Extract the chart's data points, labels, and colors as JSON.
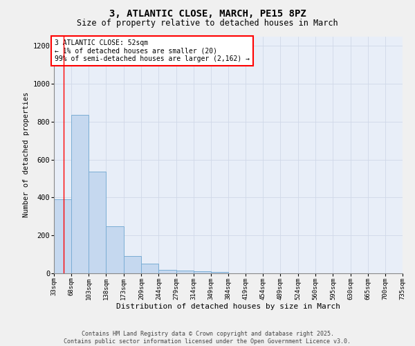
{
  "title": "3, ATLANTIC CLOSE, MARCH, PE15 8PZ",
  "subtitle": "Size of property relative to detached houses in March",
  "xlabel": "Distribution of detached houses by size in March",
  "ylabel": "Number of detached properties",
  "bar_values": [
    390,
    835,
    535,
    248,
    90,
    52,
    18,
    15,
    12,
    8,
    0,
    0,
    0,
    0,
    0,
    0,
    0,
    0,
    0,
    0
  ],
  "bin_edges": [
    33,
    68,
    103,
    138,
    173,
    209,
    244,
    279,
    314,
    349,
    384,
    419,
    454,
    489,
    524,
    560,
    595,
    630,
    665,
    700,
    735
  ],
  "x_labels": [
    "33sqm",
    "68sqm",
    "103sqm",
    "138sqm",
    "173sqm",
    "209sqm",
    "244sqm",
    "279sqm",
    "314sqm",
    "349sqm",
    "384sqm",
    "419sqm",
    "454sqm",
    "489sqm",
    "524sqm",
    "560sqm",
    "595sqm",
    "630sqm",
    "665sqm",
    "700sqm",
    "735sqm"
  ],
  "bar_color": "#c5d8ef",
  "bar_edge_color": "#7aadd4",
  "grid_color": "#d0d8e8",
  "background_color": "#e8eef8",
  "fig_background": "#f0f0f0",
  "red_line_x": 52,
  "ylim": [
    0,
    1250
  ],
  "yticks": [
    0,
    200,
    400,
    600,
    800,
    1000,
    1200
  ],
  "annotation_text": "3 ATLANTIC CLOSE: 52sqm\n← 1% of detached houses are smaller (20)\n99% of semi-detached houses are larger (2,162) →",
  "footer_line1": "Contains HM Land Registry data © Crown copyright and database right 2025.",
  "footer_line2": "Contains public sector information licensed under the Open Government Licence v3.0."
}
